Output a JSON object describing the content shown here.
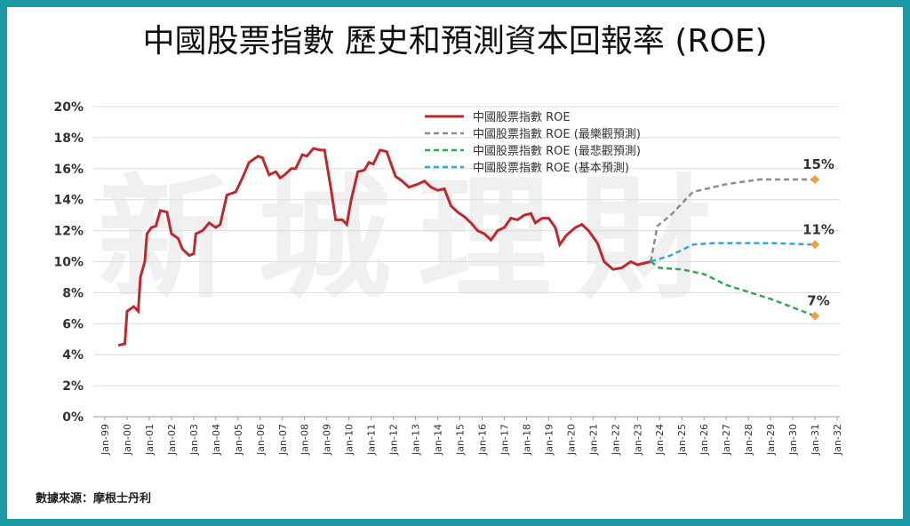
{
  "chart_data": {
    "type": "line",
    "title": "中國股票指數 歷史和預測資本回報率 (ROE)",
    "watermark": "新城理財",
    "source": "數據來源：摩根士丹利",
    "grid": true,
    "legend": "top",
    "xlim": [
      1999,
      2032
    ],
    "xticks": [
      {
        "value": 1999,
        "label": "Jan-99"
      },
      {
        "value": 2000,
        "label": "Jan-00"
      },
      {
        "value": 2001,
        "label": "Jan-01"
      },
      {
        "value": 2002,
        "label": "Jan-02"
      },
      {
        "value": 2003,
        "label": "Jan-03"
      },
      {
        "value": 2004,
        "label": "Jan-04"
      },
      {
        "value": 2005,
        "label": "Jan-05"
      },
      {
        "value": 2006,
        "label": "Jan-06"
      },
      {
        "value": 2007,
        "label": "Jan-07"
      },
      {
        "value": 2008,
        "label": "Jan-08"
      },
      {
        "value": 2009,
        "label": "Jan-09"
      },
      {
        "value": 2010,
        "label": "Jan-10"
      },
      {
        "value": 2011,
        "label": "Jan-11"
      },
      {
        "value": 2012,
        "label": "Jan-12"
      },
      {
        "value": 2013,
        "label": "Jan-13"
      },
      {
        "value": 2014,
        "label": "Jan-14"
      },
      {
        "value": 2015,
        "label": "Jan-15"
      },
      {
        "value": 2016,
        "label": "Jan-16"
      },
      {
        "value": 2017,
        "label": "Jan-17"
      },
      {
        "value": 2018,
        "label": "Jan-18"
      },
      {
        "value": 2019,
        "label": "Jan-19"
      },
      {
        "value": 2020,
        "label": "Jan-20"
      },
      {
        "value": 2021,
        "label": "Jan-21"
      },
      {
        "value": 2022,
        "label": "Jan-22"
      },
      {
        "value": 2023,
        "label": "Jan-23"
      },
      {
        "value": 2024,
        "label": "Jan-24"
      },
      {
        "value": 2025,
        "label": "Jan-25"
      },
      {
        "value": 2026,
        "label": "Jan-26"
      },
      {
        "value": 2027,
        "label": "Jan-27"
      },
      {
        "value": 2028,
        "label": "Jan-28"
      },
      {
        "value": 2029,
        "label": "Jan-29"
      },
      {
        "value": 2030,
        "label": "Jan-30"
      },
      {
        "value": 2031,
        "label": "Jan-31"
      },
      {
        "value": 2032,
        "label": "Jan-32"
      }
    ],
    "ylim": [
      0,
      20
    ],
    "yticks": [
      {
        "value": 0,
        "label": "0%"
      },
      {
        "value": 2,
        "label": "2%"
      },
      {
        "value": 4,
        "label": "4%"
      },
      {
        "value": 6,
        "label": "6%"
      },
      {
        "value": 8,
        "label": "8%"
      },
      {
        "value": 10,
        "label": "10%"
      },
      {
        "value": 12,
        "label": "12%"
      },
      {
        "value": 14,
        "label": "14%"
      },
      {
        "value": 16,
        "label": "16%"
      },
      {
        "value": 18,
        "label": "18%"
      },
      {
        "value": 20,
        "label": "20%"
      }
    ],
    "series": [
      {
        "name": "中國股票指數 ROE",
        "color": "#c0282d",
        "dashed": false,
        "x": [
          1999.6,
          1999.9,
          2000.0,
          2000.3,
          2000.5,
          2000.6,
          2000.8,
          2000.9,
          2001.1,
          2001.3,
          2001.5,
          2001.8,
          2002.0,
          2002.3,
          2002.5,
          2002.8,
          2003.0,
          2003.1,
          2003.4,
          2003.7,
          2004.0,
          2004.2,
          2004.5,
          2004.9,
          2005.2,
          2005.5,
          2005.9,
          2006.1,
          2006.4,
          2006.7,
          2006.9,
          2007.1,
          2007.4,
          2007.6,
          2007.9,
          2008.1,
          2008.4,
          2008.7,
          2008.9,
          2009.2,
          2009.4,
          2009.7,
          2009.9,
          2010.1,
          2010.4,
          2010.7,
          2010.9,
          2011.1,
          2011.4,
          2011.7,
          2011.9,
          2012.1,
          2012.4,
          2012.7,
          2013.1,
          2013.4,
          2013.7,
          2014.0,
          2014.3,
          2014.6,
          2014.9,
          2015.2,
          2015.5,
          2015.8,
          2016.1,
          2016.4,
          2016.7,
          2017.0,
          2017.3,
          2017.6,
          2017.9,
          2018.2,
          2018.4,
          2018.7,
          2019.0,
          2019.3,
          2019.5,
          2019.8,
          2020.2,
          2020.5,
          2020.8,
          2021.2,
          2021.5,
          2021.9,
          2022.3,
          2022.7,
          2023.0,
          2023.6
        ],
        "values": [
          4.6,
          4.7,
          6.8,
          7.1,
          6.8,
          9.0,
          10.0,
          11.8,
          12.2,
          12.3,
          13.3,
          13.2,
          11.8,
          11.5,
          10.8,
          10.4,
          10.5,
          11.8,
          12.0,
          12.5,
          12.2,
          12.4,
          14.3,
          14.5,
          15.4,
          16.4,
          16.8,
          16.7,
          15.6,
          15.8,
          15.4,
          15.6,
          16.0,
          16.0,
          16.9,
          16.8,
          17.3,
          17.2,
          17.2,
          14.6,
          12.7,
          12.7,
          12.4,
          14.0,
          15.8,
          15.9,
          16.4,
          16.3,
          17.2,
          17.1,
          16.3,
          15.5,
          15.2,
          14.8,
          15.0,
          15.2,
          14.8,
          14.6,
          14.7,
          13.6,
          13.2,
          12.9,
          12.5,
          12.0,
          11.8,
          11.4,
          12.0,
          12.2,
          12.8,
          12.7,
          13.0,
          13.1,
          12.5,
          12.8,
          12.8,
          12.2,
          11.1,
          11.7,
          12.2,
          12.4,
          12.0,
          11.2,
          10.0,
          9.5,
          9.6,
          10.0,
          9.8,
          10.0
        ]
      },
      {
        "name": "中國股票指數 ROE (最樂觀預測)",
        "color": "#8c8c8c",
        "dashed": true,
        "end_label": "15%",
        "x": [
          2023.6,
          2023.9,
          2024.5,
          2025.5,
          2027.0,
          2028.5,
          2031.0
        ],
        "values": [
          10.0,
          12.3,
          13.0,
          14.5,
          15.0,
          15.3,
          15.3
        ]
      },
      {
        "name": "中國股票指數 ROE (最悲觀預測)",
        "color": "#2eaa4a",
        "dashed": true,
        "end_label": "7%",
        "x": [
          2023.6,
          2024.0,
          2025.0,
          2026.0,
          2027.0,
          2029.0,
          2031.0
        ],
        "values": [
          10.0,
          9.6,
          9.5,
          9.2,
          8.5,
          7.6,
          6.5
        ]
      },
      {
        "name": "中國股票指數 ROE (基本預測)",
        "color": "#2aa8e0",
        "dashed": true,
        "end_label": "11%",
        "x": [
          2023.6,
          2024.5,
          2025.5,
          2026.5,
          2029.0,
          2031.0
        ],
        "values": [
          10.0,
          10.4,
          11.1,
          11.2,
          11.2,
          11.1
        ]
      }
    ]
  }
}
